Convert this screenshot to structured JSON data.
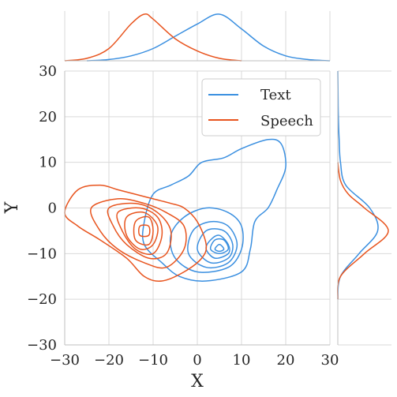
{
  "chart_data": {
    "type": "kde-joint",
    "xlabel": "X",
    "ylabel": "Y",
    "xlim": [
      -30,
      30
    ],
    "ylim": [
      -30,
      30
    ],
    "x_ticks": [
      -30,
      -20,
      -10,
      0,
      10,
      20,
      30
    ],
    "y_ticks": [
      -30,
      -20,
      -10,
      0,
      10,
      20,
      30
    ],
    "x_tick_labels": [
      "−30",
      "−20",
      "−10",
      "0",
      "10",
      "20",
      "30"
    ],
    "y_tick_labels": [
      "−30",
      "−20",
      "−10",
      "0",
      "10",
      "20",
      "30"
    ],
    "grid": true,
    "legend_position": "top-right",
    "series": [
      {
        "name": "Text",
        "color": "#3a8fe0",
        "center": [
          5,
          -8
        ],
        "contours": [
          [
            [
              -8,
              -12
            ],
            [
              -4,
              -15
            ],
            [
              2,
              -16
            ],
            [
              10,
              -14
            ],
            [
              12,
              -9
            ],
            [
              13,
              -3
            ],
            [
              16,
              0
            ],
            [
              18,
              4
            ],
            [
              20,
              9
            ],
            [
              19,
              14
            ],
            [
              16,
              15
            ],
            [
              10,
              13
            ],
            [
              6,
              11
            ],
            [
              1,
              10
            ],
            [
              -2,
              7
            ],
            [
              -6,
              5
            ],
            [
              -10,
              3
            ],
            [
              -12,
              -3
            ],
            [
              -12,
              -8
            ]
          ],
          [
            [
              -5,
              -11
            ],
            [
              0,
              -14
            ],
            [
              7,
              -13
            ],
            [
              10,
              -9
            ],
            [
              10,
              -4
            ],
            [
              7,
              -1
            ],
            [
              2,
              0
            ],
            [
              -3,
              -2
            ],
            [
              -6,
              -6
            ]
          ],
          [
            [
              -2,
              -10
            ],
            [
              2,
              -13
            ],
            [
              7,
              -12
            ],
            [
              9,
              -8
            ],
            [
              7,
              -4
            ],
            [
              3,
              -3
            ],
            [
              -1,
              -5
            ]
          ],
          [
            [
              0,
              -9
            ],
            [
              3,
              -12
            ],
            [
              7,
              -11
            ],
            [
              8,
              -8
            ],
            [
              6,
              -5
            ],
            [
              2,
              -5
            ]
          ],
          [
            [
              2,
              -9
            ],
            [
              4,
              -11
            ],
            [
              7,
              -10
            ],
            [
              7,
              -8
            ],
            [
              5,
              -6
            ],
            [
              3,
              -7
            ]
          ],
          [
            [
              3,
              -9
            ],
            [
              5,
              -10
            ],
            [
              7,
              -9
            ],
            [
              6,
              -7
            ],
            [
              4,
              -7
            ]
          ],
          [
            [
              4,
              -9
            ],
            [
              5,
              -9.5
            ],
            [
              6,
              -9
            ],
            [
              5,
              -8
            ]
          ]
        ],
        "x_density": [
          [
            -25,
            0
          ],
          [
            -20,
            0.005
          ],
          [
            -15,
            0.02
          ],
          [
            -10,
            0.05
          ],
          [
            -5,
            0.1
          ],
          [
            0,
            0.15
          ],
          [
            5,
            0.19
          ],
          [
            10,
            0.13
          ],
          [
            15,
            0.06
          ],
          [
            20,
            0.02
          ],
          [
            25,
            0.005
          ],
          [
            30,
            0
          ]
        ],
        "y_density": [
          [
            -20,
            0
          ],
          [
            -15,
            0.01
          ],
          [
            -10,
            0.08
          ],
          [
            -5,
            0.15
          ],
          [
            0,
            0.12
          ],
          [
            5,
            0.03
          ],
          [
            10,
            0.01
          ],
          [
            15,
            0.005
          ],
          [
            20,
            0.002
          ],
          [
            25,
            0.001
          ],
          [
            30,
            0
          ]
        ]
      },
      {
        "name": "Speech",
        "color": "#e8541e",
        "center": [
          -12,
          -5
        ],
        "contours": [
          [
            [
              -30,
              -1
            ],
            [
              -27,
              4
            ],
            [
              -22,
              5
            ],
            [
              -18,
              4
            ],
            [
              -14,
              3
            ],
            [
              -10,
              2
            ],
            [
              -6,
              1
            ],
            [
              -3,
              0
            ],
            [
              0,
              -3
            ],
            [
              2,
              -8
            ],
            [
              1,
              -11
            ],
            [
              -3,
              -14
            ],
            [
              -8,
              -16
            ],
            [
              -12,
              -15
            ],
            [
              -16,
              -11
            ],
            [
              -22,
              -7
            ],
            [
              -27,
              -4
            ]
          ],
          [
            [
              -24,
              0
            ],
            [
              -18,
              2
            ],
            [
              -12,
              1
            ],
            [
              -7,
              -1
            ],
            [
              -3,
              -4
            ],
            [
              -3,
              -9
            ],
            [
              -7,
              -13
            ],
            [
              -12,
              -12
            ],
            [
              -18,
              -9
            ],
            [
              -22,
              -5
            ]
          ],
          [
            [
              -20,
              0
            ],
            [
              -14,
              1
            ],
            [
              -9,
              -1
            ],
            [
              -6,
              -5
            ],
            [
              -7,
              -10
            ],
            [
              -11,
              -11
            ],
            [
              -16,
              -8
            ],
            [
              -19,
              -4
            ]
          ],
          [
            [
              -18,
              -1
            ],
            [
              -13,
              0
            ],
            [
              -9,
              -2
            ],
            [
              -8,
              -6
            ],
            [
              -10,
              -10
            ],
            [
              -14,
              -9
            ],
            [
              -17,
              -5
            ]
          ],
          [
            [
              -16,
              -2
            ],
            [
              -12,
              -1
            ],
            [
              -9,
              -4
            ],
            [
              -10,
              -8
            ],
            [
              -13,
              -9
            ],
            [
              -16,
              -6
            ]
          ],
          [
            [
              -14,
              -3
            ],
            [
              -11,
              -2
            ],
            [
              -10,
              -5
            ],
            [
              -11,
              -8
            ],
            [
              -14,
              -7
            ]
          ],
          [
            [
              -13,
              -4
            ],
            [
              -11,
              -4
            ],
            [
              -11,
              -6
            ],
            [
              -13,
              -6
            ]
          ]
        ],
        "x_density": [
          [
            -30,
            0
          ],
          [
            -25,
            0.01
          ],
          [
            -20,
            0.05
          ],
          [
            -15,
            0.15
          ],
          [
            -12,
            0.19
          ],
          [
            -10,
            0.17
          ],
          [
            -5,
            0.09
          ],
          [
            0,
            0.04
          ],
          [
            5,
            0.01
          ],
          [
            10,
            0
          ]
        ],
        "y_density": [
          [
            -20,
            0
          ],
          [
            -15,
            0.01
          ],
          [
            -10,
            0.1
          ],
          [
            -5,
            0.19
          ],
          [
            0,
            0.1
          ],
          [
            3,
            0.04
          ],
          [
            6,
            0.01
          ],
          [
            10,
            0
          ]
        ]
      }
    ]
  }
}
